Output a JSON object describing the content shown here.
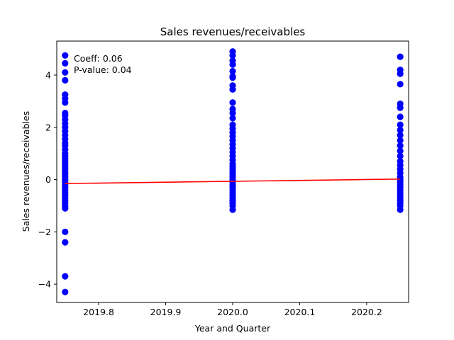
{
  "chart_data": {
    "type": "scatter",
    "title": "Sales revenues/receivables",
    "xlabel": "Year and Quarter",
    "ylabel": "Sales revenues/receivables",
    "xlim": [
      2019.7375,
      2020.2625
    ],
    "ylim": [
      -4.7,
      5.3
    ],
    "xticks": [
      2019.8,
      2019.9,
      2020.0,
      2020.1,
      2020.2
    ],
    "xtick_labels": [
      "2019.8",
      "2019.9",
      "2020.0",
      "2020.1",
      "2020.2"
    ],
    "yticks": [
      -4,
      -2,
      0,
      2,
      4
    ],
    "ytick_labels": [
      "−4",
      "−2",
      "0",
      "2",
      "4"
    ],
    "grid": false,
    "annotations": [
      "Coeff: 0.06",
      "P-value: 0.04"
    ],
    "colors": {
      "points": "#0000ff",
      "fit_line": "#ff0000"
    },
    "scatter_series": [
      {
        "x": 2019.75,
        "y": [
          4.75,
          4.45,
          4.1,
          3.8,
          3.25,
          3.1,
          2.95,
          2.55,
          2.45,
          2.3,
          2.15,
          2.0,
          1.85,
          1.7,
          1.55,
          1.4,
          1.3,
          1.15,
          1.0,
          0.9,
          0.8,
          0.7,
          0.6,
          0.5,
          0.4,
          0.3,
          0.2,
          0.1,
          0.0,
          -0.1,
          -0.2,
          -0.3,
          -0.4,
          -0.5,
          -0.6,
          -0.7,
          -0.8,
          -0.9,
          -1.0,
          -1.1,
          -2.0,
          -2.4,
          -3.7,
          -4.3
        ]
      },
      {
        "x": 2020.0,
        "y": [
          4.9,
          4.75,
          4.55,
          4.4,
          4.15,
          3.95,
          3.9,
          3.6,
          3.45,
          2.95,
          2.7,
          2.55,
          2.35,
          2.1,
          1.95,
          1.8,
          1.65,
          1.5,
          1.35,
          1.2,
          1.05,
          0.9,
          0.75,
          0.6,
          0.5,
          0.4,
          0.3,
          0.2,
          0.1,
          0.0,
          -0.1,
          -0.2,
          -0.3,
          -0.4,
          -0.5,
          -0.6,
          -0.7,
          -0.8,
          -0.9,
          -1.0,
          -1.15
        ]
      },
      {
        "x": 2020.25,
        "y": [
          4.7,
          4.2,
          4.05,
          3.65,
          2.9,
          2.75,
          2.4,
          2.1,
          1.9,
          1.7,
          1.5,
          1.3,
          1.1,
          0.9,
          0.7,
          0.55,
          0.4,
          0.25,
          0.1,
          0.0,
          -0.1,
          -0.2,
          -0.3,
          -0.4,
          -0.5,
          -0.6,
          -0.7,
          -0.8,
          -0.9,
          -1.0,
          -1.15
        ]
      }
    ],
    "fit_line": {
      "x": [
        2019.75,
        2020.25
      ],
      "y": [
        -0.15,
        0.02
      ]
    }
  }
}
